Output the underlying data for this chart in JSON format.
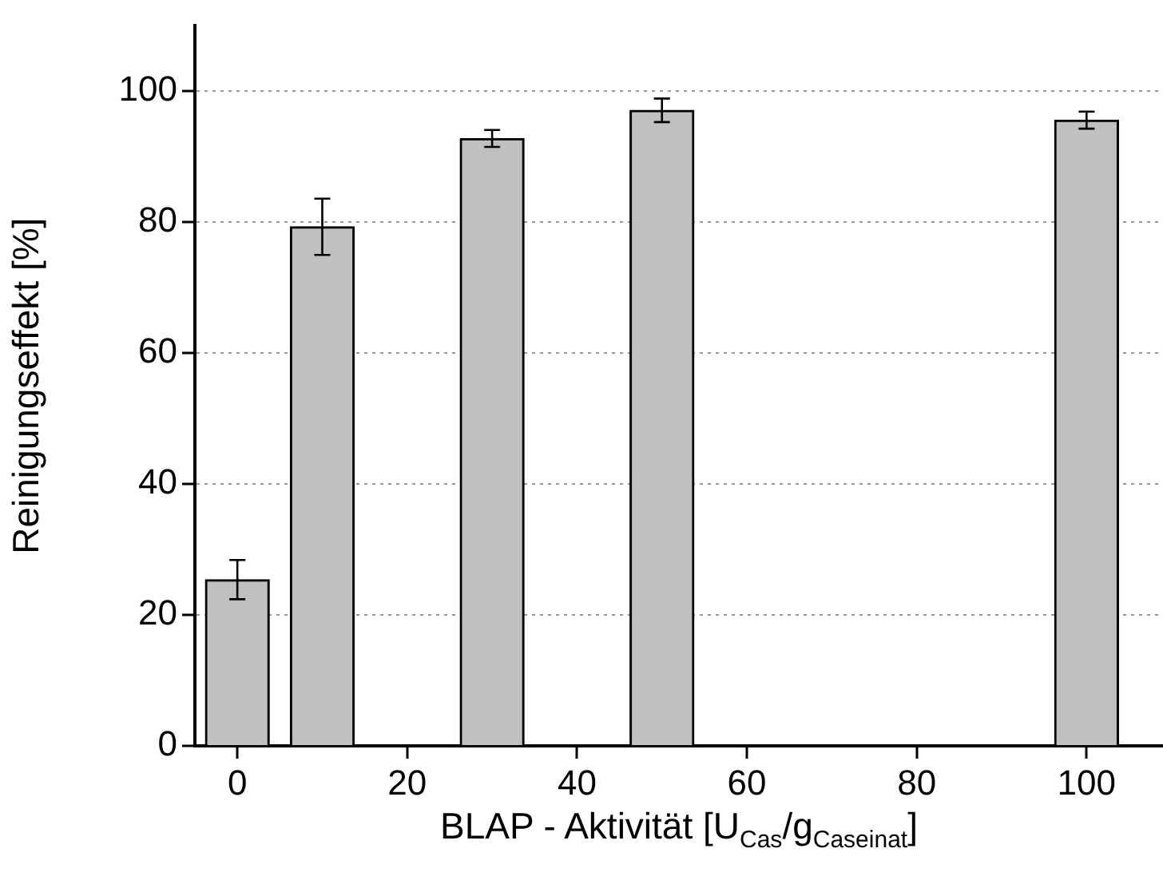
{
  "chart_data": {
    "type": "bar",
    "xlabel": "BLAP - Aktivität [U$_{Cas}$/g$_{Caseinat}$]",
    "ylabel": "Reinigungseffekt [%]",
    "x": [
      0,
      10,
      30,
      50,
      100
    ],
    "values": [
      25.4,
      79.3,
      92.8,
      97.1,
      95.6
    ],
    "errors": [
      3,
      4.3,
      1.3,
      1.8,
      1.3
    ],
    "color": "#c0c0c0",
    "xlim": [
      -5,
      109
    ],
    "xticks": [
      0,
      20,
      40,
      60,
      80,
      100
    ],
    "ylim": [
      0,
      110
    ],
    "yticks": [
      0,
      20,
      40,
      60,
      80,
      100
    ],
    "grid": "y",
    "legend": false
  }
}
